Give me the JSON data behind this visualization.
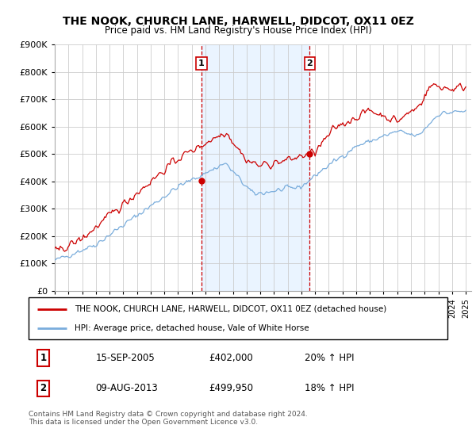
{
  "title": "THE NOOK, CHURCH LANE, HARWELL, DIDCOT, OX11 0EZ",
  "subtitle": "Price paid vs. HM Land Registry's House Price Index (HPI)",
  "legend_line1": "THE NOOK, CHURCH LANE, HARWELL, DIDCOT, OX11 0EZ (detached house)",
  "legend_line2": "HPI: Average price, detached house, Vale of White Horse",
  "footnote": "Contains HM Land Registry data © Crown copyright and database right 2024.\nThis data is licensed under the Open Government Licence v3.0.",
  "sale1_label": "1",
  "sale1_date": "15-SEP-2005",
  "sale1_price": "£402,000",
  "sale1_hpi": "20% ↑ HPI",
  "sale2_label": "2",
  "sale2_date": "09-AUG-2013",
  "sale2_price": "£499,950",
  "sale2_hpi": "18% ↑ HPI",
  "sale1_year": 2005.71,
  "sale1_value": 402000,
  "sale2_year": 2013.6,
  "sale2_value": 499950,
  "red_color": "#cc0000",
  "blue_color": "#7aaddc",
  "background_shaded": "#ddeeff",
  "ylim": [
    0,
    900000
  ],
  "xlim_start": 1995.0,
  "xlim_end": 2025.4
}
